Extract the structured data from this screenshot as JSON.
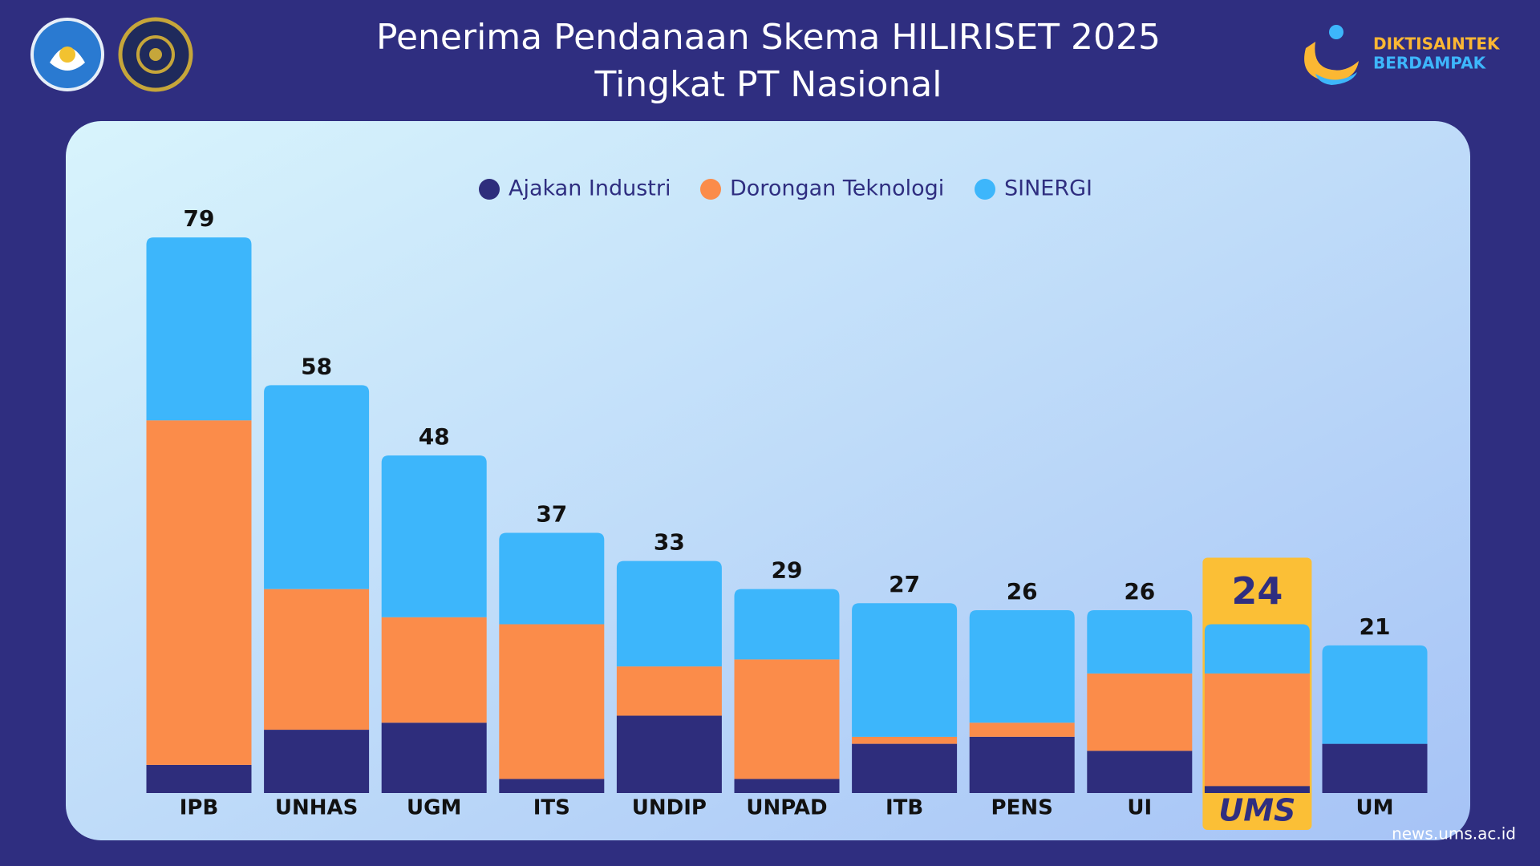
{
  "header": {
    "title_lines": [
      "Penerima Pendanaan Skema HILIRISET 2025",
      "Tingkat PT Nasional"
    ],
    "brand_lines": [
      "DIKTISAINTEK",
      "BERDAMPAK"
    ]
  },
  "chart_data": {
    "type": "stacked_bar",
    "categories": [
      "IPB",
      "UNHAS",
      "UGM",
      "ITS",
      "UNDIP",
      "UNPAD",
      "ITB",
      "PENS",
      "UI",
      "UMS",
      "UM"
    ],
    "series": [
      {
        "name": "Ajakan Industri",
        "color": "#2e2d7c",
        "values": [
          4,
          9,
          10,
          2,
          11,
          2,
          7,
          8,
          6,
          1,
          7
        ]
      },
      {
        "name": "Dorongan Teknologi",
        "color": "#fb8c4a",
        "values": [
          49,
          20,
          15,
          22,
          7,
          17,
          1,
          2,
          11,
          16,
          0
        ]
      },
      {
        "name": "SINERGI",
        "color": "#3db6fb",
        "values": [
          26,
          29,
          23,
          13,
          15,
          10,
          19,
          16,
          9,
          7,
          14
        ]
      }
    ],
    "totals": [
      79,
      58,
      48,
      37,
      33,
      29,
      27,
      26,
      26,
      24,
      21
    ],
    "highlight": "UMS",
    "highlight_color": "#fbbf36"
  },
  "footer": {
    "source": "news.ums.ac.id"
  }
}
